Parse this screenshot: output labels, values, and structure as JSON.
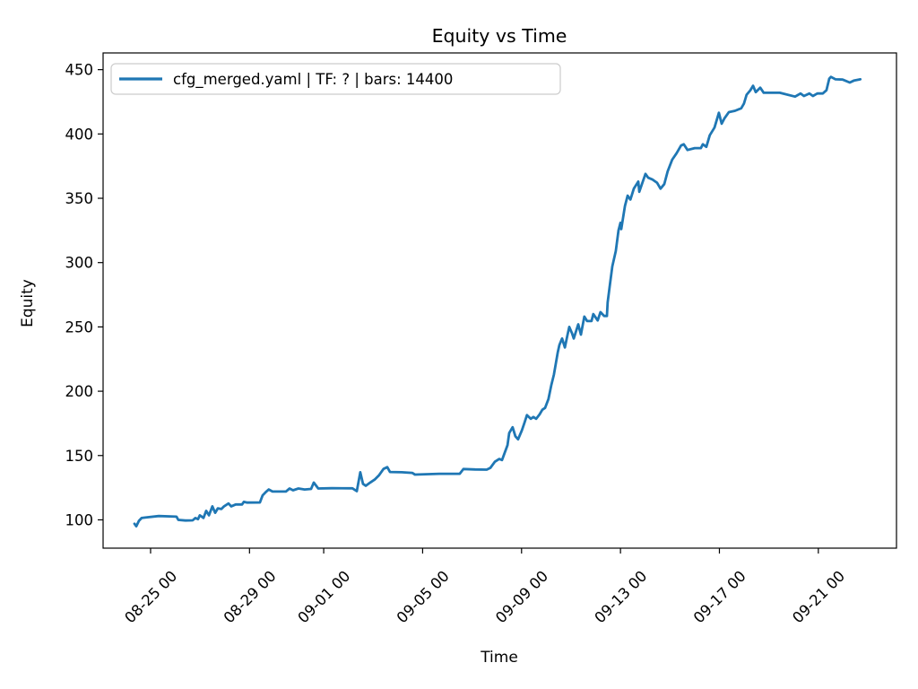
{
  "figure": {
    "title": "Equity vs Time",
    "xlabel": "Time",
    "ylabel": "Equity"
  },
  "legend": {
    "label": "cfg_merged.yaml | TF: ? | bars: 14400",
    "position": "upper left"
  },
  "colors": {
    "line": "#1f77b4",
    "legend_border": "#cccccc",
    "spine": "#000000",
    "background": "#ffffff",
    "text": "#000000"
  },
  "chart_data": {
    "type": "line",
    "title": "Equity vs Time",
    "xlabel": "Time",
    "ylabel": "Equity",
    "grid": false,
    "legend_position": "upper left",
    "legend_entries": [
      "cfg_merged.yaml | TF: ? | bars: 14400"
    ],
    "y_ticks": [
      100,
      150,
      200,
      250,
      300,
      350,
      400,
      450
    ],
    "ylim": [
      78,
      463
    ],
    "x_origin": "08-23 00:00",
    "x_tick_labels": [
      "08-25 00",
      "08-29 00",
      "09-01 00",
      "09-05 00",
      "09-09 00",
      "09-13 00",
      "09-17 00",
      "09-21 00"
    ],
    "x_tick_day_offsets": [
      2,
      6,
      9,
      13,
      17,
      21,
      25,
      29
    ],
    "xlim_day_offsets": [
      0.08,
      32.16
    ],
    "series": [
      {
        "name": "cfg_merged.yaml | TF: ? | bars: 14400",
        "color": "#1f77b4",
        "points_day_value": [
          [
            1.35,
            97.0
          ],
          [
            1.42,
            95.0
          ],
          [
            1.53,
            99.3
          ],
          [
            1.64,
            101.4
          ],
          [
            1.78,
            101.8
          ],
          [
            2.33,
            103.0
          ],
          [
            3.05,
            102.5
          ],
          [
            3.12,
            100.0
          ],
          [
            3.41,
            99.5
          ],
          [
            3.7,
            99.6
          ],
          [
            3.81,
            101.4
          ],
          [
            3.92,
            100.5
          ],
          [
            3.99,
            103.5
          ],
          [
            4.14,
            101.5
          ],
          [
            4.25,
            107.0
          ],
          [
            4.36,
            103.5
          ],
          [
            4.5,
            110.5
          ],
          [
            4.61,
            105.5
          ],
          [
            4.72,
            109.0
          ],
          [
            4.86,
            108.4
          ],
          [
            4.97,
            110.5
          ],
          [
            5.15,
            112.7
          ],
          [
            5.26,
            110.5
          ],
          [
            5.44,
            112.0
          ],
          [
            5.7,
            112.0
          ],
          [
            5.77,
            114.0
          ],
          [
            5.91,
            113.4
          ],
          [
            6.42,
            113.5
          ],
          [
            6.53,
            119.0
          ],
          [
            6.68,
            122.0
          ],
          [
            6.78,
            123.6
          ],
          [
            6.93,
            122.0
          ],
          [
            7.47,
            122.0
          ],
          [
            7.62,
            124.4
          ],
          [
            7.76,
            123.0
          ],
          [
            7.98,
            124.4
          ],
          [
            8.23,
            123.6
          ],
          [
            8.49,
            124.0
          ],
          [
            8.6,
            129.0
          ],
          [
            8.78,
            124.4
          ],
          [
            9.32,
            124.6
          ],
          [
            10.16,
            124.5
          ],
          [
            10.34,
            122.3
          ],
          [
            10.48,
            137.0
          ],
          [
            10.59,
            128.0
          ],
          [
            10.7,
            126.5
          ],
          [
            10.88,
            129.0
          ],
          [
            11.06,
            131.3
          ],
          [
            11.24,
            134.8
          ],
          [
            11.42,
            139.6
          ],
          [
            11.57,
            141.0
          ],
          [
            11.68,
            137.2
          ],
          [
            12.15,
            137.0
          ],
          [
            12.58,
            136.5
          ],
          [
            12.69,
            135.2
          ],
          [
            13.67,
            135.8
          ],
          [
            14.5,
            135.8
          ],
          [
            14.65,
            139.5
          ],
          [
            15.12,
            139.2
          ],
          [
            15.59,
            139.0
          ],
          [
            15.74,
            140.4
          ],
          [
            15.92,
            145.2
          ],
          [
            16.1,
            147.3
          ],
          [
            16.21,
            146.5
          ],
          [
            16.32,
            152.2
          ],
          [
            16.43,
            158.0
          ],
          [
            16.5,
            167.5
          ],
          [
            16.64,
            172.0
          ],
          [
            16.75,
            165.0
          ],
          [
            16.86,
            162.6
          ],
          [
            17.01,
            169.5
          ],
          [
            17.11,
            175.0
          ],
          [
            17.22,
            181.4
          ],
          [
            17.37,
            178.6
          ],
          [
            17.48,
            180.0
          ],
          [
            17.59,
            178.6
          ],
          [
            17.73,
            182.0
          ],
          [
            17.84,
            185.6
          ],
          [
            17.95,
            187.0
          ],
          [
            18.09,
            194.0
          ],
          [
            18.2,
            204.5
          ],
          [
            18.31,
            213.0
          ],
          [
            18.46,
            230.0
          ],
          [
            18.53,
            236.0
          ],
          [
            18.64,
            241.0
          ],
          [
            18.75,
            234.0
          ],
          [
            18.86,
            244.0
          ],
          [
            18.93,
            250.0
          ],
          [
            19.04,
            245.0
          ],
          [
            19.11,
            241.0
          ],
          [
            19.29,
            252.0
          ],
          [
            19.4,
            244.0
          ],
          [
            19.54,
            258.0
          ],
          [
            19.65,
            254.5
          ],
          [
            19.83,
            254.5
          ],
          [
            19.9,
            260.0
          ],
          [
            20.08,
            255.0
          ],
          [
            20.19,
            261.5
          ],
          [
            20.34,
            258.5
          ],
          [
            20.45,
            258.5
          ],
          [
            20.48,
            269.0
          ],
          [
            20.56,
            281.0
          ],
          [
            20.67,
            297.0
          ],
          [
            20.81,
            309.0
          ],
          [
            20.92,
            325.0
          ],
          [
            21.0,
            331.0
          ],
          [
            21.03,
            326.0
          ],
          [
            21.18,
            344.0
          ],
          [
            21.29,
            352.0
          ],
          [
            21.4,
            349.0
          ],
          [
            21.54,
            357.5
          ],
          [
            21.72,
            363.0
          ],
          [
            21.76,
            355.0
          ],
          [
            22.01,
            369.0
          ],
          [
            22.12,
            366.0
          ],
          [
            22.3,
            364.5
          ],
          [
            22.48,
            362.0
          ],
          [
            22.62,
            357.5
          ],
          [
            22.77,
            361.0
          ],
          [
            22.91,
            371.0
          ],
          [
            23.09,
            380.0
          ],
          [
            23.27,
            385.0
          ],
          [
            23.45,
            391.0
          ],
          [
            23.56,
            392.0
          ],
          [
            23.71,
            387.5
          ],
          [
            24.0,
            389.0
          ],
          [
            24.25,
            389.0
          ],
          [
            24.33,
            392.0
          ],
          [
            24.47,
            390.0
          ],
          [
            24.61,
            399.0
          ],
          [
            24.8,
            405.0
          ],
          [
            24.98,
            416.5
          ],
          [
            25.09,
            408.0
          ],
          [
            25.2,
            412.0
          ],
          [
            25.38,
            417.0
          ],
          [
            25.63,
            418.0
          ],
          [
            25.88,
            420.0
          ],
          [
            25.99,
            423.5
          ],
          [
            26.1,
            430.5
          ],
          [
            26.25,
            434.0
          ],
          [
            26.36,
            437.5
          ],
          [
            26.47,
            432.5
          ],
          [
            26.65,
            436.0
          ],
          [
            26.79,
            432.0
          ],
          [
            27.44,
            432.0
          ],
          [
            28.06,
            429.0
          ],
          [
            28.28,
            431.5
          ],
          [
            28.42,
            429.5
          ],
          [
            28.64,
            431.5
          ],
          [
            28.78,
            429.5
          ],
          [
            28.96,
            431.5
          ],
          [
            29.18,
            431.5
          ],
          [
            29.33,
            434.0
          ],
          [
            29.44,
            443.0
          ],
          [
            29.51,
            444.4
          ],
          [
            29.69,
            442.5
          ],
          [
            29.98,
            442.3
          ],
          [
            30.27,
            440.0
          ],
          [
            30.45,
            441.6
          ],
          [
            30.7,
            442.5
          ]
        ]
      }
    ]
  }
}
